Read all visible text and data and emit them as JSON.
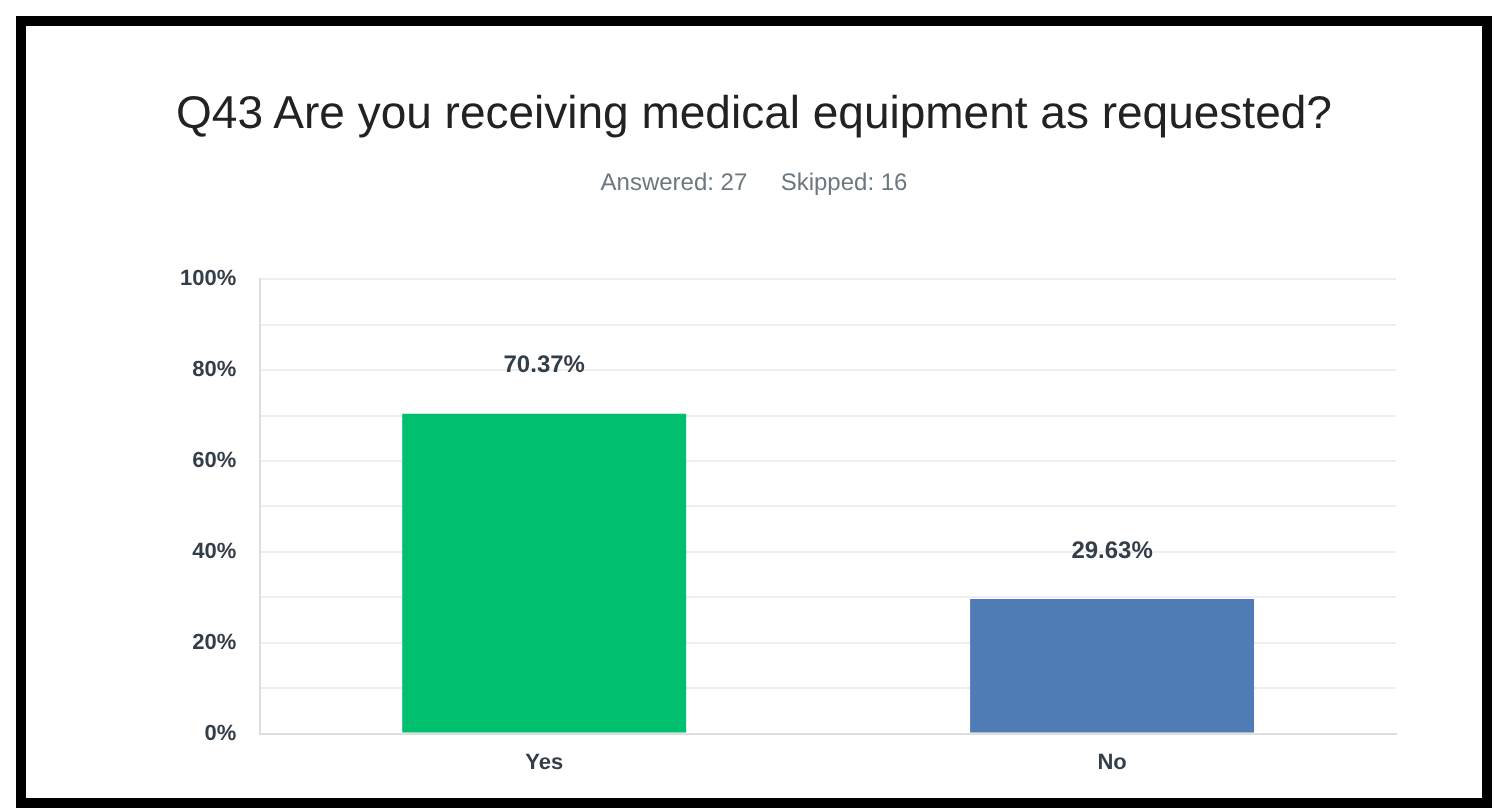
{
  "chart_data": {
    "type": "bar",
    "title": "Q43 Are you receiving medical equipment as requested?",
    "subtitle": "Answered: 27     Skipped: 16",
    "categories": [
      "Yes",
      "No"
    ],
    "values": [
      70.37,
      29.63
    ],
    "colors": [
      "#00bf6f",
      "#507cb6"
    ],
    "value_labels": [
      "70.37%",
      "29.63%"
    ],
    "ylim": [
      0,
      100
    ],
    "yticks": [
      {
        "value": 0,
        "label": "0%"
      },
      {
        "value": 10,
        "label": null
      },
      {
        "value": 20,
        "label": "20%"
      },
      {
        "value": 30,
        "label": null
      },
      {
        "value": 40,
        "label": "40%"
      },
      {
        "value": 50,
        "label": null
      },
      {
        "value": 60,
        "label": "60%"
      },
      {
        "value": 70,
        "label": null
      },
      {
        "value": 80,
        "label": "80%"
      },
      {
        "value": 90,
        "label": null
      },
      {
        "value": 100,
        "label": "100%"
      }
    ],
    "grid": "y",
    "legend": false
  }
}
